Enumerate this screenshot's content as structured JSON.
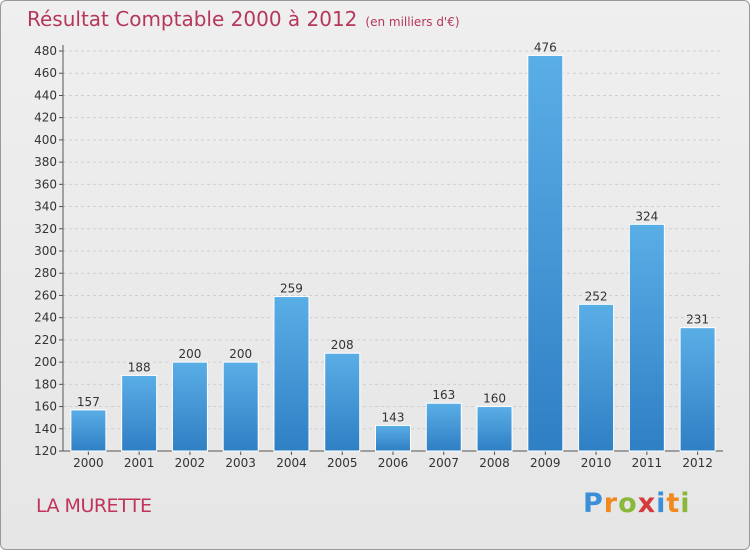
{
  "chart_data": {
    "type": "bar",
    "title": "Résultat Comptable 2000 à 2012",
    "subtitle": "(en milliers d'€)",
    "categories": [
      "2000",
      "2001",
      "2002",
      "2003",
      "2004",
      "2005",
      "2006",
      "2007",
      "2008",
      "2009",
      "2010",
      "2011",
      "2012"
    ],
    "values": [
      157,
      188,
      200,
      200,
      259,
      208,
      143,
      163,
      160,
      476,
      252,
      324,
      231
    ],
    "ylim": [
      120,
      480
    ],
    "yticks": [
      120,
      140,
      160,
      180,
      200,
      220,
      240,
      260,
      280,
      300,
      320,
      340,
      360,
      380,
      400,
      420,
      440,
      460,
      480
    ],
    "xlabel": "",
    "ylabel": "",
    "grid": true,
    "bar_color_top": "#5aaee6",
    "bar_color_bottom": "#2f7fc4"
  },
  "footer": {
    "place": "LA MURETTE",
    "brand": "Proxiti"
  },
  "colors": {
    "title": "#b5385a",
    "brand_p": "#3b8fd8",
    "brand_r": "#f08a1e",
    "brand_o": "#8ab83a",
    "brand_x": "#d63a3a",
    "brand_i": "#3b8fd8",
    "brand_t": "#f08a1e",
    "brand_i2": "#8ab83a"
  }
}
